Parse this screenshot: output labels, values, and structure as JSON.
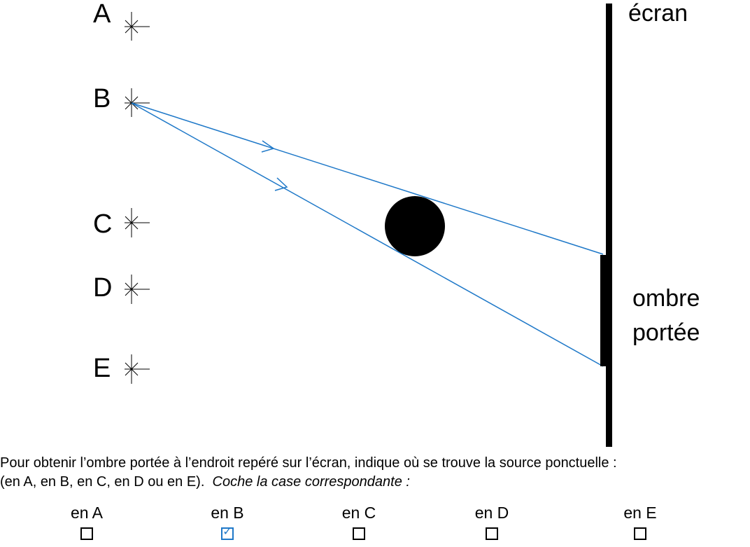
{
  "diagram": {
    "points": [
      {
        "id": "A",
        "label": "A"
      },
      {
        "id": "B",
        "label": "B"
      },
      {
        "id": "C",
        "label": "C"
      },
      {
        "id": "D",
        "label": "D"
      },
      {
        "id": "E",
        "label": "E"
      }
    ],
    "screen_label": "écran",
    "shadow_label_line1": "ombre",
    "shadow_label_line2": "portée",
    "colors": {
      "rays": "#1e78c8",
      "ink": "#000000"
    }
  },
  "question": {
    "line1": "Pour obtenir l’ombre portée à l’endroit repéré sur l’écran, indique où se trouve la source ponctuelle :",
    "line2_plain": "(en A, en B, en C, en D ou en E).",
    "line2_instruction": "Coche la case correspondante :"
  },
  "choices": [
    {
      "label": "en A",
      "checked": false
    },
    {
      "label": "en B",
      "checked": true
    },
    {
      "label": "en C",
      "checked": false
    },
    {
      "label": "en D",
      "checked": false
    },
    {
      "label": "en E",
      "checked": false
    }
  ]
}
